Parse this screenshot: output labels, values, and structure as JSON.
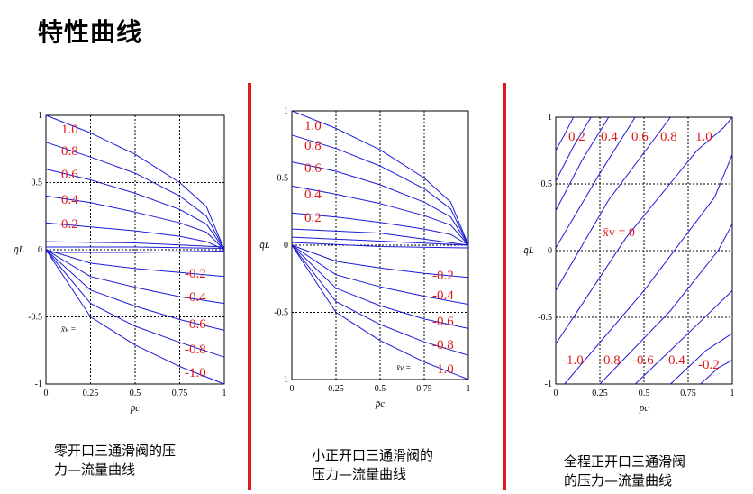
{
  "page": {
    "title": "特性曲线"
  },
  "colors": {
    "curve": "#1a1ad6",
    "label": "#e01a1a",
    "divider": "#e01a1a"
  },
  "captions": [
    [
      "零开口三通滑阀的压",
      "力—流量曲线"
    ],
    [
      "小正开口三通滑阀的",
      "压力—流量曲线"
    ],
    [
      "全程正开口三通滑阀",
      "的压力—流量曲线"
    ]
  ],
  "chart_data": [
    {
      "type": "line",
      "title": "",
      "xlabel": "p̄c",
      "ylabel": "q̄L",
      "xlim": [
        0,
        1
      ],
      "ylim": [
        -1,
        1
      ],
      "xticks": [
        "0",
        "0.25",
        "0.5",
        "0.75",
        "1"
      ],
      "yticks": [
        "1",
        "0.5",
        "0",
        "-0.5",
        "-1"
      ],
      "grid": true,
      "series_label_prefix": "x̄v =",
      "series": [
        {
          "name": "1.0",
          "x": [
            0,
            0.25,
            0.5,
            0.75,
            0.9,
            1
          ],
          "y": [
            1,
            0.87,
            0.71,
            0.5,
            0.32,
            0
          ]
        },
        {
          "name": "0.8",
          "x": [
            0,
            0.25,
            0.5,
            0.75,
            0.9,
            1
          ],
          "y": [
            0.8,
            0.69,
            0.57,
            0.4,
            0.25,
            0
          ]
        },
        {
          "name": "0.6",
          "x": [
            0,
            0.25,
            0.5,
            0.75,
            0.9,
            1
          ],
          "y": [
            0.6,
            0.52,
            0.42,
            0.3,
            0.19,
            0
          ]
        },
        {
          "name": "0.4",
          "x": [
            0,
            0.25,
            0.5,
            0.75,
            0.9,
            1
          ],
          "y": [
            0.4,
            0.35,
            0.28,
            0.2,
            0.13,
            0
          ]
        },
        {
          "name": "0.2",
          "x": [
            0,
            0.25,
            0.5,
            0.75,
            0.9,
            1
          ],
          "y": [
            0.2,
            0.17,
            0.14,
            0.1,
            0.06,
            0
          ]
        },
        {
          "name": "",
          "x": [
            0,
            0.5,
            1
          ],
          "y": [
            0.06,
            0.05,
            0.02
          ]
        },
        {
          "name": "",
          "x": [
            0,
            0.5,
            1
          ],
          "y": [
            0.02,
            0.02,
            0.01
          ]
        },
        {
          "name": "",
          "x": [
            0,
            0.5,
            1
          ],
          "y": [
            -0.02,
            -0.02,
            -0.01
          ]
        },
        {
          "name": "-0.2",
          "x": [
            0,
            0.25,
            0.5,
            0.75,
            1
          ],
          "y": [
            0,
            -0.1,
            -0.14,
            -0.17,
            -0.2
          ]
        },
        {
          "name": "-0.4",
          "x": [
            0,
            0.25,
            0.5,
            0.75,
            1
          ],
          "y": [
            0,
            -0.2,
            -0.28,
            -0.35,
            -0.4
          ]
        },
        {
          "name": "-0.6",
          "x": [
            0,
            0.25,
            0.5,
            0.75,
            1
          ],
          "y": [
            0,
            -0.3,
            -0.42,
            -0.52,
            -0.6
          ]
        },
        {
          "name": "-0.8",
          "x": [
            0,
            0.25,
            0.5,
            0.75,
            1
          ],
          "y": [
            0,
            -0.4,
            -0.57,
            -0.69,
            -0.8
          ]
        },
        {
          "name": "-1.0",
          "x": [
            0,
            0.25,
            0.5,
            0.75,
            1
          ],
          "y": [
            0,
            -0.5,
            -0.71,
            -0.87,
            -1
          ]
        }
      ]
    },
    {
      "type": "line",
      "title": "",
      "xlabel": "p̄c",
      "ylabel": "q̄L",
      "xlim": [
        0,
        1
      ],
      "ylim": [
        -1,
        1
      ],
      "xticks": [
        "0",
        "0.25",
        "0.5",
        "0.75",
        "1"
      ],
      "yticks": [
        "1",
        "0.5",
        "0",
        "-0.5",
        "-1"
      ],
      "grid": true,
      "series_label_prefix": "x̄v =",
      "series": [
        {
          "name": "1.0",
          "x": [
            0,
            0.25,
            0.5,
            0.75,
            0.9,
            1
          ],
          "y": [
            1,
            0.87,
            0.71,
            0.5,
            0.32,
            0
          ]
        },
        {
          "name": "0.8",
          "x": [
            0,
            0.25,
            0.5,
            0.75,
            0.9,
            1
          ],
          "y": [
            0.82,
            0.72,
            0.59,
            0.42,
            0.27,
            0
          ]
        },
        {
          "name": "0.6",
          "x": [
            0,
            0.25,
            0.5,
            0.75,
            0.9,
            1
          ],
          "y": [
            0.62,
            0.55,
            0.45,
            0.32,
            0.21,
            0
          ]
        },
        {
          "name": "0.4",
          "x": [
            0,
            0.25,
            0.5,
            0.75,
            0.9,
            1
          ],
          "y": [
            0.44,
            0.38,
            0.31,
            0.22,
            0.15,
            0
          ]
        },
        {
          "name": "0.2",
          "x": [
            0,
            0.25,
            0.5,
            0.75,
            0.9,
            1
          ],
          "y": [
            0.24,
            0.21,
            0.17,
            0.12,
            0.08,
            0
          ]
        },
        {
          "name": "",
          "x": [
            0,
            0.5,
            1
          ],
          "y": [
            0.12,
            0.09,
            0
          ]
        },
        {
          "name": "",
          "x": [
            0,
            0.5,
            1
          ],
          "y": [
            0.06,
            0.03,
            0
          ]
        },
        {
          "name": "",
          "x": [
            0,
            0.5,
            1
          ],
          "y": [
            0.02,
            -0.01,
            -0.02
          ]
        },
        {
          "name": "-0.2",
          "x": [
            0,
            0.25,
            0.5,
            0.75,
            1
          ],
          "y": [
            0,
            -0.12,
            -0.17,
            -0.21,
            -0.24
          ]
        },
        {
          "name": "-0.4",
          "x": [
            0,
            0.25,
            0.5,
            0.75,
            1
          ],
          "y": [
            0,
            -0.22,
            -0.31,
            -0.38,
            -0.44
          ]
        },
        {
          "name": "-0.6",
          "x": [
            0,
            0.25,
            0.5,
            0.75,
            1
          ],
          "y": [
            0,
            -0.32,
            -0.45,
            -0.55,
            -0.62
          ]
        },
        {
          "name": "-0.8",
          "x": [
            0,
            0.25,
            0.5,
            0.75,
            1
          ],
          "y": [
            0,
            -0.42,
            -0.59,
            -0.72,
            -0.82
          ]
        },
        {
          "name": "-1.0",
          "x": [
            0,
            0.25,
            0.5,
            0.75,
            1
          ],
          "y": [
            0,
            -0.5,
            -0.71,
            -0.87,
            -1
          ]
        }
      ]
    },
    {
      "type": "line",
      "title": "",
      "xlabel": "p̄c",
      "ylabel": "q̄L",
      "xlim": [
        0,
        1
      ],
      "ylim": [
        -1,
        1
      ],
      "xticks": [
        "0",
        "0.25",
        "0.5",
        "0.75",
        "1"
      ],
      "yticks": [
        "1",
        "0.5",
        "0",
        "-0.5",
        "-1"
      ],
      "grid": true,
      "zero_label": "x̄v = 0",
      "series": [
        {
          "name": "",
          "x": [
            0,
            0.05,
            0.1
          ],
          "y": [
            0.75,
            0.87,
            1
          ]
        },
        {
          "name": "0.2",
          "x": [
            0,
            0.1,
            0.2
          ],
          "y": [
            0.52,
            0.78,
            1
          ]
        },
        {
          "name": "0.4",
          "x": [
            0,
            0.15,
            0.3
          ],
          "y": [
            0.3,
            0.68,
            1
          ]
        },
        {
          "name": "0.6",
          "x": [
            0,
            0.25,
            0.45
          ],
          "y": [
            0.02,
            0.58,
            1
          ]
        },
        {
          "name": "0.8",
          "x": [
            0,
            0.3,
            0.65
          ],
          "y": [
            -0.3,
            0.38,
            1
          ]
        },
        {
          "name": "1.0",
          "x": [
            0,
            0.4,
            0.8,
            0.95,
            1
          ],
          "y": [
            -0.7,
            0.1,
            0.75,
            0.92,
            1
          ]
        },
        {
          "name": "",
          "x": [
            0.05,
            0.5,
            0.9,
            1
          ],
          "y": [
            -1,
            -0.3,
            0.4,
            0.72
          ]
        },
        {
          "name": "",
          "x": [
            0.25,
            0.65,
            0.92,
            1
          ],
          "y": [
            -1,
            -0.45,
            0,
            0.2
          ]
        },
        {
          "name": "",
          "x": [
            0.45,
            0.75,
            1
          ],
          "y": [
            -1,
            -0.62,
            -0.3
          ]
        },
        {
          "name": "",
          "x": [
            0.65,
            0.85,
            1
          ],
          "y": [
            -1,
            -0.75,
            -0.62
          ]
        },
        {
          "name": "",
          "x": [
            0.82,
            0.92,
            1
          ],
          "y": [
            -1,
            -0.88,
            -0.82
          ]
        }
      ],
      "bottom_labels": [
        "-1.0",
        "-0.8",
        "-0.6",
        "-0.4",
        "-0.2"
      ]
    }
  ]
}
